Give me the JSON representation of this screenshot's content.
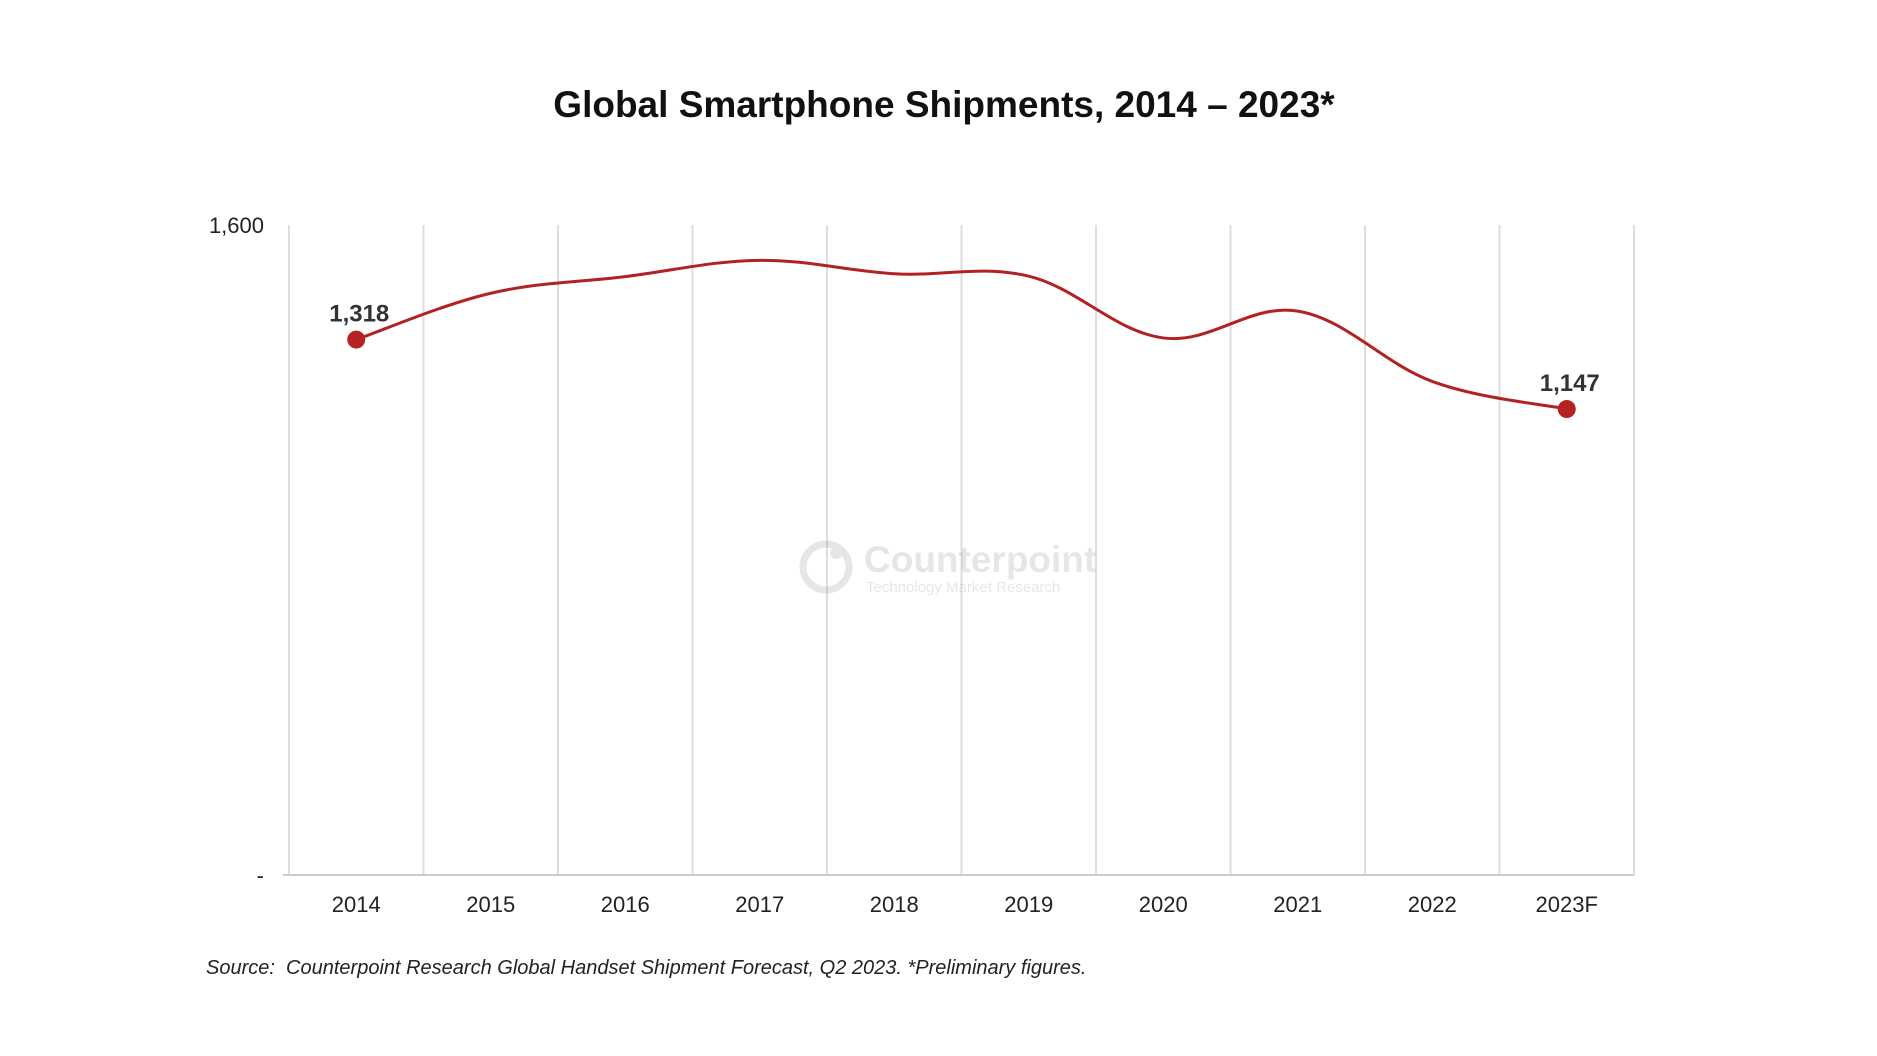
{
  "chart_data": {
    "type": "line",
    "title": "Global Smartphone Shipments, 2014 – 2023*",
    "categories": [
      "2014",
      "2015",
      "2016",
      "2017",
      "2018",
      "2019",
      "2020",
      "2021",
      "2022",
      "2023F"
    ],
    "series": [
      {
        "values": [
          1318,
          1432,
          1473,
          1513,
          1480,
          1474,
          1322,
          1388,
          1215,
          1147
        ]
      }
    ],
    "data_labels": [
      {
        "index": 0,
        "text": "1,318"
      },
      {
        "index": 9,
        "text": "1,147"
      }
    ],
    "y_tick_labels": [
      "-",
      "1,600"
    ],
    "ylim": [
      0,
      1600
    ],
    "xlabel": "",
    "ylabel": "",
    "grid": "vertical",
    "legend": "none",
    "line_color": "#b22222",
    "marker_color": "#b52222",
    "grid_color": "#dddddd"
  },
  "watermark": {
    "name": "Counterpoint",
    "tagline": "Technology Market Research"
  },
  "source_note": "Source:  Counterpoint Research Global Handset Shipment Forecast, Q2 2023. *Preliminary figures."
}
